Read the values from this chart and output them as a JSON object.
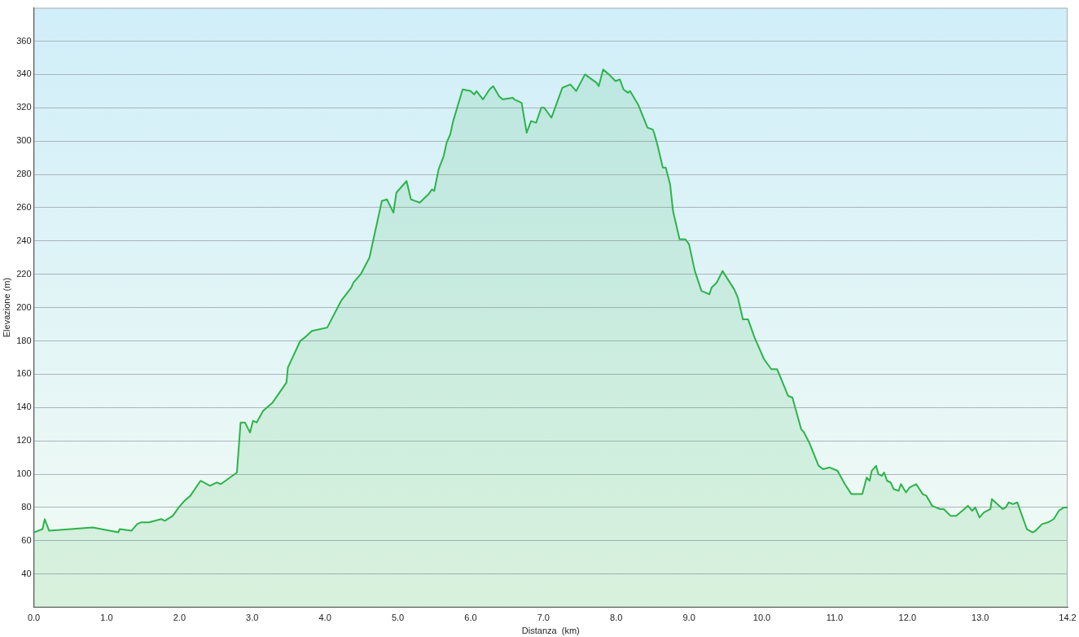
{
  "chart_data": {
    "type": "area",
    "xlabel": "Distanza  (km)",
    "ylabel": "Elevazione (m)",
    "xlim": [
      0,
      14.2
    ],
    "xticks": [
      {
        "value": 0,
        "label": "0.0"
      },
      {
        "value": 1,
        "label": "1.0"
      },
      {
        "value": 2,
        "label": "2.0"
      },
      {
        "value": 3,
        "label": "3.0"
      },
      {
        "value": 4,
        "label": "4.0"
      },
      {
        "value": 5,
        "label": "5.0"
      },
      {
        "value": 6,
        "label": "6.0"
      },
      {
        "value": 7,
        "label": "7.0"
      },
      {
        "value": 8,
        "label": "8.0"
      },
      {
        "value": 9,
        "label": "9.0"
      },
      {
        "value": 10,
        "label": "10.0"
      },
      {
        "value": 11,
        "label": "11.0"
      },
      {
        "value": 12,
        "label": "12.0"
      },
      {
        "value": 13,
        "label": "13.0"
      },
      {
        "value": 14.2,
        "label": "14.2"
      }
    ],
    "ylim": [
      20,
      380
    ],
    "yticks": [
      40,
      60,
      80,
      100,
      120,
      140,
      160,
      180,
      200,
      220,
      240,
      260,
      280,
      300,
      320,
      340,
      360
    ],
    "grid": "y",
    "legend": false,
    "marker": "none",
    "line_style": "solid",
    "series": [
      {
        "color": "#2db34a",
        "x": [
          0,
          0.12,
          0.15,
          0.21,
          0.81,
          1.16,
          1.18,
          1.34,
          1.42,
          1.47,
          1.58,
          1.75,
          1.8,
          1.91,
          1.99,
          2.07,
          2.15,
          2.29,
          2.38,
          2.42,
          2.51,
          2.57,
          2.79,
          2.84,
          2.9,
          2.97,
          3.01,
          3.06,
          3.15,
          3.28,
          3.47,
          3.49,
          3.66,
          3.72,
          3.82,
          4.03,
          4.22,
          4.36,
          4.39,
          4.49,
          4.61,
          4.78,
          4.85,
          4.94,
          4.98,
          5.12,
          5.18,
          5.3,
          5.42,
          5.47,
          5.5,
          5.56,
          5.63,
          5.67,
          5.72,
          5.76,
          5.89,
          6.0,
          6.05,
          6.08,
          6.17,
          6.26,
          6.31,
          6.39,
          6.44,
          6.58,
          6.6,
          6.7,
          6.77,
          6.83,
          6.9,
          6.97,
          7.01,
          7.11,
          7.26,
          7.37,
          7.45,
          7.57,
          7.73,
          7.76,
          7.82,
          7.9,
          7.99,
          8.05,
          8.1,
          8.16,
          8.19,
          8.3,
          8.43,
          8.5,
          8.52,
          8.57,
          8.64,
          8.68,
          8.74,
          8.78,
          8.87,
          8.95,
          9.0,
          9.08,
          9.17,
          9.28,
          9.31,
          9.38,
          9.46,
          9.62,
          9.67,
          9.74,
          9.81,
          9.9,
          9.97,
          10.03,
          10.13,
          10.21,
          10.36,
          10.42,
          10.54,
          10.58,
          10.65,
          10.78,
          10.84,
          10.93,
          11.04,
          11.14,
          11.23,
          11.35,
          11.38,
          11.44,
          11.48,
          11.51,
          11.57,
          11.6,
          11.65,
          11.68,
          11.72,
          11.77,
          11.81,
          11.88,
          11.91,
          11.98,
          12.03,
          12.12,
          12.21,
          12.26,
          12.34,
          12.39,
          12.45,
          12.5,
          12.59,
          12.67,
          12.78,
          12.83,
          12.89,
          12.93,
          12.99,
          13.05,
          13.14,
          13.16,
          13.31,
          13.35,
          13.39,
          13.45,
          13.51,
          13.64,
          13.72,
          13.76,
          13.85,
          13.93,
          14.01,
          14.08,
          14.15,
          14.2
        ],
        "values": [
          65,
          67,
          73,
          66,
          68,
          65,
          67,
          66,
          70,
          71,
          71,
          73,
          72,
          75,
          80,
          84,
          87,
          96,
          94,
          93,
          95,
          94,
          101,
          131,
          131,
          125,
          132,
          131,
          138,
          143,
          155,
          164,
          180,
          182,
          186,
          188,
          204,
          212,
          215,
          220,
          230,
          264,
          265,
          257,
          269,
          276,
          265,
          263,
          268,
          271,
          270,
          283,
          291,
          299,
          304,
          312,
          331,
          330,
          328,
          330,
          325,
          331,
          333,
          327,
          325,
          326,
          325,
          323,
          305,
          312,
          311,
          320,
          320,
          314,
          332,
          334,
          330,
          340,
          335,
          333,
          343,
          340,
          336,
          337,
          331,
          329,
          330,
          322,
          308,
          307,
          305,
          297,
          284,
          284,
          274,
          258,
          241,
          241,
          238,
          222,
          210,
          208,
          212,
          215,
          222,
          211,
          206,
          193,
          193,
          182,
          175,
          169,
          163,
          163,
          147,
          146,
          127,
          125,
          119,
          105,
          103,
          104,
          102,
          94,
          88,
          88,
          88,
          98,
          96,
          102,
          105,
          100,
          99,
          101,
          96,
          95,
          91,
          90,
          94,
          89,
          92,
          94,
          88,
          87,
          81,
          80,
          79,
          79,
          75,
          75,
          79,
          81,
          78,
          80,
          74,
          77,
          79,
          85,
          79,
          80,
          83,
          82,
          83,
          67,
          65,
          66,
          70,
          71,
          73,
          78,
          80,
          80
        ]
      }
    ]
  }
}
